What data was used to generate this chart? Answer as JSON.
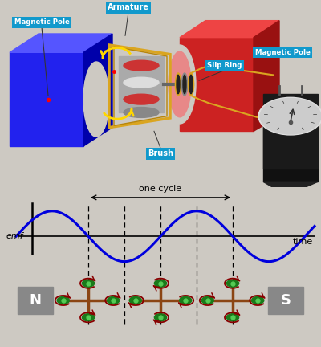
{
  "bg_color": "#cdc9c2",
  "wave_color": "#0000dd",
  "emf_label": "emf",
  "time_label": "time",
  "one_cycle_label": "one cycle",
  "N_label": "N",
  "S_label": "S",
  "magnet_color": "#888888",
  "wire_color": "#8B4513",
  "dot_color": "#1a7a1a",
  "arrow_color": "#880000",
  "label_bg_color": "#1199CC",
  "label_text_color": "#ffffff",
  "armature_label": "Armature",
  "mag_pole_left_label": "Magnetic Pole",
  "mag_pole_right_label": "Magnetic Pole",
  "slip_ring_label": "Slip Ring",
  "brush_label": "Brush",
  "blue_front": "#2222ee",
  "blue_top": "#5555ff",
  "blue_side": "#0000aa",
  "red_front": "#cc2222",
  "red_top": "#ee4444",
  "red_side": "#991111",
  "galvo_body": "#111111",
  "galvo_dial": "#e0e0e0"
}
